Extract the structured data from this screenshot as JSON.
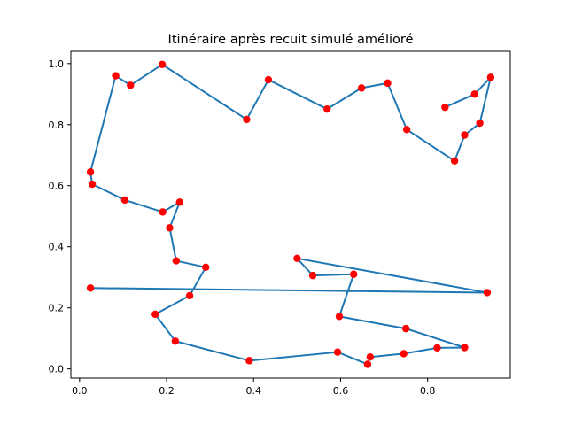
{
  "chart_data": {
    "type": "line",
    "title": "Itinéraire après recuit simulé amélioré",
    "xlabel": "",
    "ylabel": "",
    "xlim": [
      -0.02,
      0.99
    ],
    "ylim": [
      -0.03,
      1.04
    ],
    "xticks": [
      0.0,
      0.2,
      0.4,
      0.6,
      0.8
    ],
    "xtick_labels": [
      "0.0",
      "0.2",
      "0.4",
      "0.6",
      "0.8"
    ],
    "yticks": [
      0.0,
      0.2,
      0.4,
      0.6,
      0.8,
      1.0
    ],
    "ytick_labels": [
      "0.0",
      "0.2",
      "0.4",
      "0.6",
      "0.8",
      "1.0"
    ],
    "grid": false,
    "legend": false,
    "line_color": "#1f77b4",
    "marker_color": "#ff0000",
    "series": [
      {
        "points": [
          [
            0.025,
            0.265
          ],
          [
            0.937,
            0.25
          ],
          [
            0.5,
            0.362
          ],
          [
            0.536,
            0.306
          ],
          [
            0.63,
            0.31
          ],
          [
            0.597,
            0.172
          ],
          [
            0.75,
            0.132
          ],
          [
            0.885,
            0.07
          ],
          [
            0.822,
            0.069
          ],
          [
            0.745,
            0.05
          ],
          [
            0.668,
            0.039
          ],
          [
            0.662,
            0.015
          ],
          [
            0.593,
            0.055
          ],
          [
            0.39,
            0.027
          ],
          [
            0.22,
            0.091
          ],
          [
            0.174,
            0.179
          ],
          [
            0.253,
            0.24
          ],
          [
            0.29,
            0.333
          ],
          [
            0.222,
            0.354
          ],
          [
            0.207,
            0.462
          ],
          [
            0.23,
            0.546
          ],
          [
            0.191,
            0.514
          ],
          [
            0.104,
            0.553
          ],
          [
            0.029,
            0.605
          ],
          [
            0.025,
            0.645
          ],
          [
            0.083,
            0.96
          ],
          [
            0.117,
            0.929
          ],
          [
            0.19,
            0.997
          ],
          [
            0.384,
            0.817
          ],
          [
            0.434,
            0.947
          ],
          [
            0.569,
            0.851
          ],
          [
            0.648,
            0.92
          ],
          [
            0.708,
            0.936
          ],
          [
            0.752,
            0.784
          ],
          [
            0.862,
            0.681
          ],
          [
            0.885,
            0.766
          ],
          [
            0.92,
            0.805
          ],
          [
            0.945,
            0.955
          ],
          [
            0.908,
            0.9
          ],
          [
            0.84,
            0.857
          ]
        ]
      }
    ]
  }
}
